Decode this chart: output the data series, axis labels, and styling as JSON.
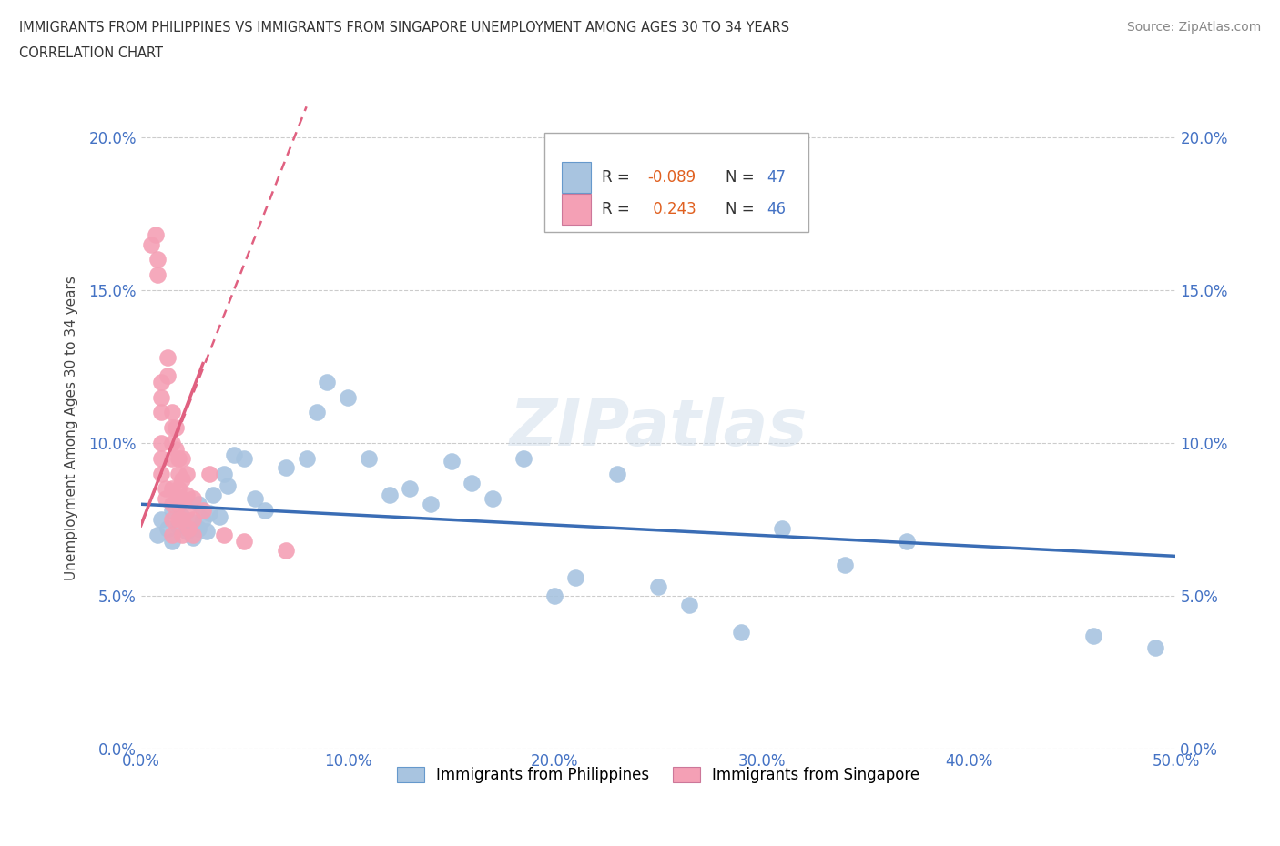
{
  "title_line1": "IMMIGRANTS FROM PHILIPPINES VS IMMIGRANTS FROM SINGAPORE UNEMPLOYMENT AMONG AGES 30 TO 34 YEARS",
  "title_line2": "CORRELATION CHART",
  "source_text": "Source: ZipAtlas.com",
  "ylabel": "Unemployment Among Ages 30 to 34 years",
  "xlim": [
    0,
    0.5
  ],
  "ylim": [
    0,
    0.21
  ],
  "xticks": [
    0.0,
    0.1,
    0.2,
    0.3,
    0.4,
    0.5
  ],
  "xticklabels": [
    "0.0%",
    "10.0%",
    "20.0%",
    "30.0%",
    "40.0%",
    "50.0%"
  ],
  "yticks": [
    0.0,
    0.05,
    0.1,
    0.15,
    0.2
  ],
  "yticklabels": [
    "0.0%",
    "5.0%",
    "10.0%",
    "15.0%",
    "20.0%"
  ],
  "philippines_color": "#a8c4e0",
  "singapore_color": "#f4a0b5",
  "philippines_line_color": "#3a6db5",
  "singapore_line_color": "#e06080",
  "philippines_R": -0.089,
  "philippines_N": 47,
  "singapore_R": 0.243,
  "singapore_N": 46,
  "watermark": "ZIPatlas",
  "philippines_x": [
    0.008,
    0.01,
    0.013,
    0.015,
    0.015,
    0.018,
    0.02,
    0.022,
    0.025,
    0.025,
    0.028,
    0.028,
    0.03,
    0.032,
    0.033,
    0.035,
    0.038,
    0.04,
    0.042,
    0.045,
    0.05,
    0.055,
    0.06,
    0.07,
    0.08,
    0.085,
    0.09,
    0.1,
    0.11,
    0.12,
    0.13,
    0.14,
    0.15,
    0.16,
    0.17,
    0.185,
    0.2,
    0.21,
    0.23,
    0.25,
    0.265,
    0.29,
    0.31,
    0.34,
    0.37,
    0.46,
    0.49
  ],
  "philippines_y": [
    0.07,
    0.075,
    0.072,
    0.068,
    0.078,
    0.073,
    0.076,
    0.071,
    0.069,
    0.074,
    0.072,
    0.08,
    0.075,
    0.071,
    0.077,
    0.083,
    0.076,
    0.09,
    0.086,
    0.096,
    0.095,
    0.082,
    0.078,
    0.092,
    0.095,
    0.11,
    0.12,
    0.115,
    0.095,
    0.083,
    0.085,
    0.08,
    0.094,
    0.087,
    0.082,
    0.095,
    0.05,
    0.056,
    0.09,
    0.053,
    0.047,
    0.038,
    0.072,
    0.06,
    0.068,
    0.037,
    0.033
  ],
  "singapore_x": [
    0.005,
    0.007,
    0.008,
    0.008,
    0.01,
    0.01,
    0.01,
    0.01,
    0.01,
    0.01,
    0.012,
    0.012,
    0.013,
    0.013,
    0.015,
    0.015,
    0.015,
    0.015,
    0.015,
    0.015,
    0.015,
    0.015,
    0.017,
    0.017,
    0.018,
    0.018,
    0.018,
    0.018,
    0.018,
    0.02,
    0.02,
    0.02,
    0.02,
    0.02,
    0.022,
    0.022,
    0.022,
    0.023,
    0.025,
    0.025,
    0.025,
    0.03,
    0.033,
    0.04,
    0.05,
    0.07
  ],
  "singapore_y": [
    0.165,
    0.168,
    0.16,
    0.155,
    0.12,
    0.115,
    0.11,
    0.1,
    0.095,
    0.09,
    0.085,
    0.082,
    0.128,
    0.122,
    0.11,
    0.105,
    0.1,
    0.095,
    0.085,
    0.08,
    0.075,
    0.07,
    0.105,
    0.098,
    0.095,
    0.09,
    0.085,
    0.08,
    0.075,
    0.095,
    0.088,
    0.082,
    0.075,
    0.07,
    0.09,
    0.083,
    0.078,
    0.072,
    0.082,
    0.075,
    0.07,
    0.078,
    0.09,
    0.07,
    0.068,
    0.065
  ]
}
